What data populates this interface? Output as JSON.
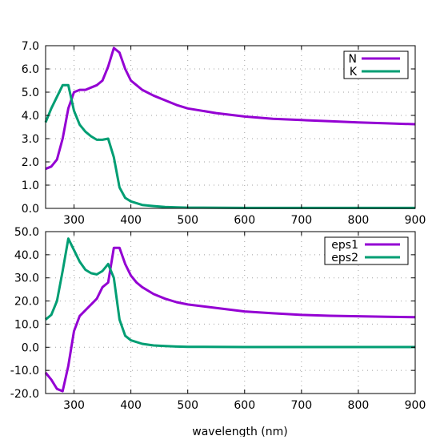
{
  "chart_data": [
    {
      "type": "line",
      "xlabel": "",
      "ylabel": "",
      "xlim": [
        250,
        900
      ],
      "ylim": [
        0,
        7
      ],
      "grid": true,
      "legend_position": "top-right",
      "x_ticks": [
        300,
        400,
        500,
        600,
        700,
        800,
        900
      ],
      "y_ticks": [
        0,
        1,
        2,
        3,
        4,
        5,
        6,
        7
      ],
      "x_tick_labels": [
        "300",
        "400",
        "500",
        "600",
        "700",
        "800",
        "900"
      ],
      "y_tick_labels": [
        "0.0",
        "1.0",
        "2.0",
        "3.0",
        "4.0",
        "5.0",
        "6.0",
        "7.0"
      ],
      "series": [
        {
          "name": "N",
          "color": "#9400d3",
          "x": [
            250,
            260,
            270,
            280,
            290,
            300,
            310,
            320,
            330,
            340,
            350,
            360,
            370,
            380,
            390,
            400,
            410,
            420,
            440,
            460,
            480,
            500,
            550,
            600,
            650,
            700,
            750,
            800,
            850,
            900
          ],
          "y": [
            1.7,
            1.8,
            2.1,
            3.0,
            4.3,
            5.0,
            5.1,
            5.1,
            5.2,
            5.3,
            5.5,
            6.1,
            6.9,
            6.7,
            6.0,
            5.5,
            5.3,
            5.1,
            4.85,
            4.65,
            4.45,
            4.3,
            4.1,
            3.95,
            3.85,
            3.8,
            3.75,
            3.7,
            3.66,
            3.62
          ]
        },
        {
          "name": "K",
          "color": "#009e73",
          "x": [
            250,
            260,
            270,
            280,
            290,
            300,
            310,
            320,
            330,
            340,
            350,
            360,
            370,
            380,
            390,
            400,
            420,
            440,
            460,
            480,
            500,
            600,
            700,
            800,
            900
          ],
          "y": [
            3.7,
            4.3,
            4.8,
            5.3,
            5.3,
            4.2,
            3.6,
            3.3,
            3.1,
            2.95,
            2.95,
            3.0,
            2.2,
            0.9,
            0.45,
            0.3,
            0.15,
            0.1,
            0.06,
            0.04,
            0.03,
            0.02,
            0.02,
            0.02,
            0.02
          ]
        }
      ]
    },
    {
      "type": "line",
      "xlabel": "wavelength (nm)",
      "ylabel": "",
      "xlim": [
        250,
        900
      ],
      "ylim": [
        -20,
        50
      ],
      "grid": true,
      "legend_position": "top-right",
      "x_ticks": [
        300,
        400,
        500,
        600,
        700,
        800,
        900
      ],
      "y_ticks": [
        -20,
        -10,
        0,
        10,
        20,
        30,
        40,
        50
      ],
      "x_tick_labels": [
        "300",
        "400",
        "500",
        "600",
        "700",
        "800",
        "900"
      ],
      "y_tick_labels": [
        "-20.0",
        "-10.0",
        "0.0",
        "10.0",
        "20.0",
        "30.0",
        "40.0",
        "50.0"
      ],
      "series": [
        {
          "name": "eps1",
          "color": "#9400d3",
          "x": [
            250,
            260,
            270,
            280,
            290,
            300,
            310,
            320,
            330,
            340,
            350,
            360,
            370,
            380,
            390,
            400,
            410,
            420,
            440,
            460,
            480,
            500,
            550,
            600,
            650,
            700,
            750,
            800,
            850,
            900
          ],
          "y": [
            -11,
            -14,
            -18,
            -19,
            -8,
            7,
            13.5,
            16,
            18.5,
            21,
            26,
            28,
            43,
            43,
            36,
            31,
            28,
            26,
            23,
            21,
            19.5,
            18.5,
            17,
            15.5,
            14.7,
            14,
            13.6,
            13.4,
            13.2,
            13
          ],
          "_note_": ""
        },
        {
          "name": "eps2",
          "color": "#009e73",
          "x": [
            250,
            260,
            270,
            280,
            290,
            300,
            310,
            320,
            330,
            340,
            350,
            360,
            370,
            380,
            390,
            400,
            420,
            440,
            460,
            480,
            500,
            600,
            700,
            800,
            900
          ],
          "y": [
            12,
            14,
            20,
            33,
            47,
            42,
            37,
            33.5,
            32,
            31.5,
            33,
            36,
            30,
            12,
            5,
            3,
            1.5,
            0.8,
            0.5,
            0.3,
            0.2,
            0.1,
            0.1,
            0.1,
            0.1
          ]
        }
      ]
    }
  ]
}
